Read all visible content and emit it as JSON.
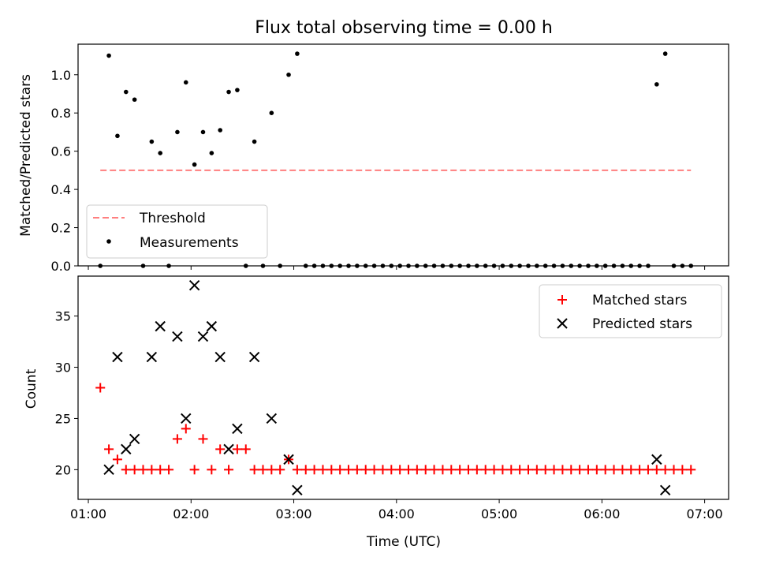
{
  "figure": {
    "title": "Flux total observing time = 0.00 h",
    "xlabel": "Time (UTC)",
    "x_ticks": [
      "01:00",
      "02:00",
      "03:00",
      "04:00",
      "05:00",
      "06:00",
      "07:00"
    ],
    "top_ylabel": "Matched/Predicted stars",
    "bottom_ylabel": "Count"
  },
  "chart_data": [
    {
      "type": "scatter",
      "panel": "top",
      "ylabel": "Matched/Predicted stars",
      "x_range": [
        "00:54",
        "07:14"
      ],
      "ylim": [
        0,
        1.16
      ],
      "y_ticks": [
        0.0,
        0.2,
        0.4,
        0.6,
        0.8,
        1.0
      ],
      "threshold": {
        "name": "Threshold",
        "value": 0.5,
        "x": [
          "01:07",
          "06:52"
        ],
        "color": "#ff7f7f",
        "style": "dashed"
      },
      "series": [
        {
          "name": "Measurements",
          "color": "#000000",
          "x": [
            "01:07",
            "01:12",
            "01:17",
            "01:22",
            "01:27",
            "01:32",
            "01:37",
            "01:42",
            "01:47",
            "01:52",
            "01:57",
            "02:02",
            "02:07",
            "02:12",
            "02:17",
            "02:22",
            "02:27",
            "02:32",
            "02:37",
            "02:42",
            "02:47",
            "02:52",
            "02:57",
            "03:02",
            "03:07",
            "03:12",
            "03:17",
            "03:22",
            "03:27",
            "03:32",
            "03:37",
            "03:42",
            "03:47",
            "03:52",
            "03:57",
            "04:02",
            "04:07",
            "04:12",
            "04:17",
            "04:22",
            "04:27",
            "04:32",
            "04:37",
            "04:42",
            "04:47",
            "04:52",
            "04:57",
            "05:02",
            "05:07",
            "05:12",
            "05:17",
            "05:22",
            "05:27",
            "05:32",
            "05:37",
            "05:42",
            "05:47",
            "05:52",
            "05:57",
            "06:02",
            "06:07",
            "06:12",
            "06:17",
            "06:22",
            "06:27",
            "06:32",
            "06:37",
            "06:42",
            "06:47",
            "06:52"
          ],
          "y": [
            0.0,
            1.1,
            0.68,
            0.91,
            0.87,
            0.0,
            0.65,
            0.59,
            0.0,
            0.7,
            0.96,
            0.53,
            0.7,
            0.59,
            0.71,
            0.91,
            0.92,
            0.0,
            0.65,
            0.0,
            0.8,
            0.0,
            1.0,
            1.11,
            0.0,
            0.0,
            0.0,
            0.0,
            0.0,
            0.0,
            0.0,
            0.0,
            0.0,
            0.0,
            0.0,
            0.0,
            0.0,
            0.0,
            0.0,
            0.0,
            0.0,
            0.0,
            0.0,
            0.0,
            0.0,
            0.0,
            0.0,
            0.0,
            0.0,
            0.0,
            0.0,
            0.0,
            0.0,
            0.0,
            0.0,
            0.0,
            0.0,
            0.0,
            0.0,
            0.0,
            0.0,
            0.0,
            0.0,
            0.0,
            0.0,
            0.95,
            1.11,
            0.0,
            0.0,
            0.0
          ]
        }
      ],
      "legend": {
        "placement": "lower-left",
        "entries": [
          "Threshold",
          "Measurements"
        ]
      }
    },
    {
      "type": "scatter",
      "panel": "bottom",
      "ylabel": "Count",
      "x_range": [
        "00:54",
        "07:14"
      ],
      "ylim": [
        17.1,
        38.9
      ],
      "y_ticks": [
        20,
        25,
        30,
        35
      ],
      "series": [
        {
          "name": "Matched stars",
          "marker": "plus",
          "color": "#ff0000",
          "x": [
            "01:07",
            "01:12",
            "01:17",
            "01:22",
            "01:27",
            "01:32",
            "01:37",
            "01:42",
            "01:47",
            "01:52",
            "01:57",
            "02:02",
            "02:07",
            "02:12",
            "02:17",
            "02:22",
            "02:27",
            "02:32",
            "02:37",
            "02:42",
            "02:47",
            "02:52",
            "02:57",
            "03:02",
            "03:07",
            "03:12",
            "03:17",
            "03:22",
            "03:27",
            "03:32",
            "03:37",
            "03:42",
            "03:47",
            "03:52",
            "03:57",
            "04:02",
            "04:07",
            "04:12",
            "04:17",
            "04:22",
            "04:27",
            "04:32",
            "04:37",
            "04:42",
            "04:47",
            "04:52",
            "04:57",
            "05:02",
            "05:07",
            "05:12",
            "05:17",
            "05:22",
            "05:27",
            "05:32",
            "05:37",
            "05:42",
            "05:47",
            "05:52",
            "05:57",
            "06:02",
            "06:07",
            "06:12",
            "06:17",
            "06:22",
            "06:27",
            "06:32",
            "06:37",
            "06:42",
            "06:47",
            "06:52"
          ],
          "y": [
            28,
            22,
            21,
            20,
            20,
            20,
            20,
            20,
            20,
            23,
            24,
            20,
            23,
            20,
            22,
            20,
            22,
            22,
            20,
            20,
            20,
            20,
            21,
            20,
            20,
            20,
            20,
            20,
            20,
            20,
            20,
            20,
            20,
            20,
            20,
            20,
            20,
            20,
            20,
            20,
            20,
            20,
            20,
            20,
            20,
            20,
            20,
            20,
            20,
            20,
            20,
            20,
            20,
            20,
            20,
            20,
            20,
            20,
            20,
            20,
            20,
            20,
            20,
            20,
            20,
            20,
            20,
            20,
            20,
            20
          ]
        },
        {
          "name": "Predicted stars",
          "marker": "x",
          "color": "#000000",
          "x": [
            "01:12",
            "01:17",
            "01:22",
            "01:27",
            "01:37",
            "01:42",
            "01:52",
            "01:57",
            "02:02",
            "02:07",
            "02:12",
            "02:17",
            "02:22",
            "02:27",
            "02:37",
            "02:47",
            "02:57",
            "03:02",
            "06:32",
            "06:37"
          ],
          "y": [
            20,
            31,
            22,
            23,
            31,
            34,
            33,
            25,
            38,
            33,
            34,
            31,
            22,
            24,
            31,
            25,
            21,
            18,
            21,
            18
          ]
        }
      ],
      "legend": {
        "placement": "top-right",
        "entries": [
          "Matched stars",
          "Predicted stars"
        ]
      }
    }
  ]
}
